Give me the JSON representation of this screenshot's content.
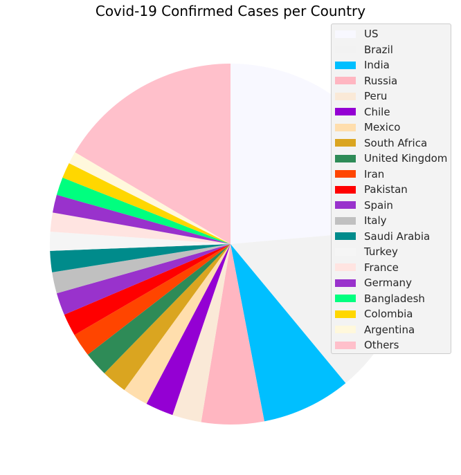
{
  "chart_data": {
    "type": "pie",
    "title": "Covid-19 Confirmed Cases per Country",
    "start_angle_deg": 90,
    "direction": "clockwise",
    "slices": [
      {
        "label": "US",
        "value": 23.6,
        "color": "#f8f8ff"
      },
      {
        "label": "Brazil",
        "value": 15.4,
        "color": "#f2f2f2"
      },
      {
        "label": "India",
        "value": 8.0,
        "color": "#00bfff"
      },
      {
        "label": "Russia",
        "value": 5.6,
        "color": "#ffb6c1"
      },
      {
        "label": "Peru",
        "value": 2.6,
        "color": "#fae9d7"
      },
      {
        "label": "Chile",
        "value": 2.5,
        "color": "#9400d3"
      },
      {
        "label": "Mexico",
        "value": 2.3,
        "color": "#ffdead"
      },
      {
        "label": "South Africa",
        "value": 2.3,
        "color": "#daa520"
      },
      {
        "label": "United Kingdom",
        "value": 2.2,
        "color": "#2e8b57"
      },
      {
        "label": "Iran",
        "value": 2.1,
        "color": "#ff4500"
      },
      {
        "label": "Pakistan",
        "value": 2.0,
        "color": "#ff0000"
      },
      {
        "label": "Spain",
        "value": 2.0,
        "color": "#9932cc"
      },
      {
        "label": "Italy",
        "value": 1.9,
        "color": "#c0c0c0"
      },
      {
        "label": "Saudi Arabia",
        "value": 1.9,
        "color": "#008b8b"
      },
      {
        "label": "Turkey",
        "value": 1.7,
        "color": "#f5f5f5"
      },
      {
        "label": "France",
        "value": 1.7,
        "color": "#ffe4e1"
      },
      {
        "label": "Germany",
        "value": 1.6,
        "color": "#9932cc"
      },
      {
        "label": "Bangladesh",
        "value": 1.6,
        "color": "#00ff7f"
      },
      {
        "label": "Colombia",
        "value": 1.4,
        "color": "#ffd700"
      },
      {
        "label": "Argentina",
        "value": 1.1,
        "color": "#fff8dc"
      },
      {
        "label": "Others",
        "value": 16.5,
        "color": "#ffc0cb"
      }
    ],
    "legend": "top-right"
  }
}
